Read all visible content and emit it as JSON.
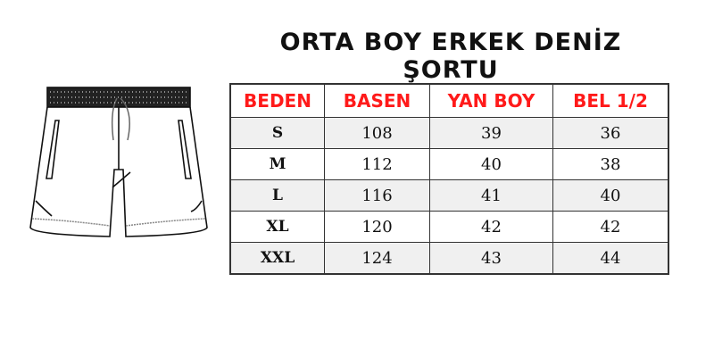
{
  "title": "ORTA BOY ERKEK DENİZ ŞORTU",
  "table": {
    "headers": [
      "BEDEN",
      "BASEN",
      "YAN BOY",
      "BEL 1/2"
    ],
    "rows": [
      [
        "S",
        "108",
        "39",
        "36"
      ],
      [
        "M",
        "112",
        "40",
        "38"
      ],
      [
        "L",
        "116",
        "41",
        "40"
      ],
      [
        "XL",
        "120",
        "42",
        "42"
      ],
      [
        "XXL",
        "124",
        "43",
        "44"
      ]
    ]
  },
  "colors": {
    "header_text": "#ff1a1a",
    "stripe": "#f0f0f0"
  }
}
